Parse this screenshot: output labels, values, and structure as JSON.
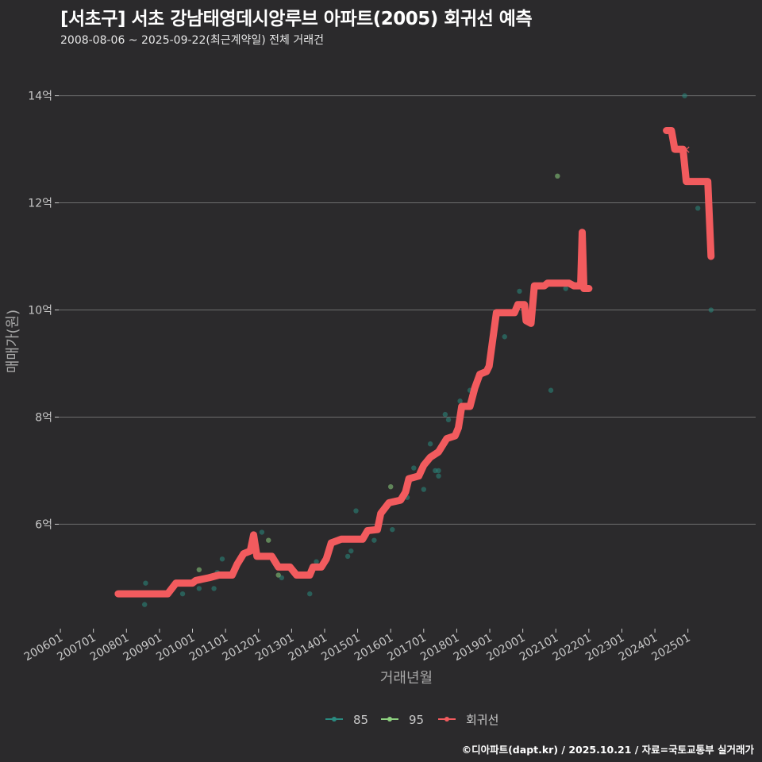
{
  "header": {
    "title": "[서초구] 서초 강남태영데시앙루브 아파트(2005) 회귀선 예측",
    "subtitle": "2008-08-06 ~ 2025-09-22(최근계약일) 전체 거래건"
  },
  "footer": {
    "credit": "©디아파트(dapt.kr) / 2025.10.21 / 자료=국토교통부 실거래가"
  },
  "colors": {
    "background": "#2b2a2c",
    "grid": "#6e6e6e",
    "s85": "#2a8a80",
    "s95": "#8dd07f",
    "regression": "#f25b5e",
    "axis_text": "#c8c8c8"
  },
  "chart_data": {
    "type": "scatter",
    "xlabel": "거래년월",
    "ylabel": "매매가(원)",
    "x_unit": "year",
    "xlim": [
      2005.95,
      2027.05
    ],
    "ylim": [
      4.05,
      14.75
    ],
    "y_unit": "억",
    "yticks": [
      6,
      8,
      10,
      12,
      14
    ],
    "ytick_labels": [
      "6억",
      "8억",
      "10억",
      "12억",
      "14억"
    ],
    "xticks": [
      2006,
      2007,
      2008,
      2009,
      2010,
      2011,
      2012,
      2013,
      2014,
      2015,
      2016,
      2017,
      2018,
      2019,
      2020,
      2021,
      2022,
      2023,
      2024,
      2025
    ],
    "xtick_labels": [
      "200601",
      "200701",
      "200801",
      "200901",
      "201001",
      "201101",
      "201201",
      "201301",
      "201401",
      "201501",
      "201601",
      "201701",
      "201801",
      "201901",
      "202001",
      "202101",
      "202201",
      "202301",
      "202401",
      "202501"
    ],
    "legend": {
      "position": "bottom",
      "items": [
        {
          "key": "s85",
          "label": "85"
        },
        {
          "key": "s95",
          "label": "95"
        },
        {
          "key": "regression",
          "label": "회귀선"
        }
      ]
    },
    "series": [
      {
        "name": "85",
        "key": "s85",
        "points": [
          [
            2008.55,
            4.5
          ],
          [
            2008.58,
            4.9
          ],
          [
            2009.7,
            4.7
          ],
          [
            2010.2,
            4.8
          ],
          [
            2010.65,
            4.8
          ],
          [
            2010.75,
            5.1
          ],
          [
            2010.9,
            5.35
          ],
          [
            2012.1,
            5.85
          ],
          [
            2012.7,
            5.0
          ],
          [
            2013.55,
            4.7
          ],
          [
            2013.75,
            5.3
          ],
          [
            2014.7,
            5.4
          ],
          [
            2014.8,
            5.5
          ],
          [
            2014.95,
            6.25
          ],
          [
            2015.5,
            5.7
          ],
          [
            2016.05,
            5.9
          ],
          [
            2016.5,
            6.5
          ],
          [
            2016.7,
            7.05
          ],
          [
            2017.0,
            6.65
          ],
          [
            2017.2,
            7.5
          ],
          [
            2017.45,
            6.9
          ],
          [
            2017.45,
            7.0
          ],
          [
            2017.35,
            7.0
          ],
          [
            2017.75,
            7.95
          ],
          [
            2017.65,
            8.05
          ],
          [
            2018.1,
            8.3
          ],
          [
            2018.4,
            8.5
          ],
          [
            2019.45,
            9.5
          ],
          [
            2019.9,
            10.35
          ],
          [
            2020.85,
            8.5
          ],
          [
            2021.3,
            10.4
          ],
          [
            2024.9,
            14.0
          ],
          [
            2025.3,
            11.9
          ],
          [
            2025.7,
            10.0
          ]
        ]
      },
      {
        "name": "95",
        "key": "s95",
        "points": [
          [
            2010.2,
            5.15
          ],
          [
            2012.3,
            5.7
          ],
          [
            2012.6,
            5.05
          ],
          [
            2016.0,
            6.7
          ],
          [
            2021.05,
            12.5
          ]
        ]
      },
      {
        "name": "회귀선",
        "key": "regression",
        "segments": [
          [
            [
              2007.75,
              4.7
            ],
            [
              2009.25,
              4.7
            ],
            [
              2009.5,
              4.9
            ],
            [
              2010.0,
              4.9
            ],
            [
              2010.1,
              4.95
            ],
            [
              2010.5,
              5.0
            ],
            [
              2010.8,
              5.05
            ],
            [
              2011.2,
              5.05
            ],
            [
              2011.35,
              5.25
            ],
            [
              2011.55,
              5.45
            ],
            [
              2011.75,
              5.5
            ],
            [
              2011.85,
              5.8
            ],
            [
              2011.95,
              5.4
            ],
            [
              2012.4,
              5.4
            ],
            [
              2012.6,
              5.2
            ],
            [
              2012.95,
              5.2
            ],
            [
              2013.15,
              5.05
            ],
            [
              2013.55,
              5.05
            ],
            [
              2013.65,
              5.2
            ],
            [
              2013.9,
              5.2
            ],
            [
              2014.05,
              5.35
            ],
            [
              2014.2,
              5.65
            ],
            [
              2014.5,
              5.72
            ],
            [
              2015.15,
              5.72
            ],
            [
              2015.3,
              5.88
            ],
            [
              2015.6,
              5.9
            ],
            [
              2015.7,
              6.2
            ],
            [
              2015.95,
              6.4
            ],
            [
              2016.3,
              6.45
            ],
            [
              2016.45,
              6.6
            ],
            [
              2016.55,
              6.85
            ],
            [
              2016.85,
              6.9
            ],
            [
              2017.0,
              7.1
            ],
            [
              2017.2,
              7.25
            ],
            [
              2017.45,
              7.35
            ],
            [
              2017.7,
              7.6
            ],
            [
              2017.95,
              7.65
            ],
            [
              2018.05,
              7.8
            ],
            [
              2018.15,
              8.2
            ],
            [
              2018.4,
              8.2
            ],
            [
              2018.55,
              8.55
            ],
            [
              2018.7,
              8.8
            ],
            [
              2018.9,
              8.85
            ],
            [
              2018.98,
              8.95
            ],
            [
              2019.2,
              9.95
            ],
            [
              2019.75,
              9.95
            ],
            [
              2019.85,
              10.1
            ],
            [
              2020.05,
              10.1
            ],
            [
              2020.1,
              9.8
            ],
            [
              2020.25,
              9.75
            ],
            [
              2020.35,
              10.45
            ],
            [
              2020.65,
              10.45
            ],
            [
              2020.75,
              10.5
            ],
            [
              2021.4,
              10.5
            ],
            [
              2021.55,
              10.45
            ],
            [
              2021.75,
              10.45
            ],
            [
              2021.8,
              11.45
            ],
            [
              2021.85,
              10.4
            ],
            [
              2022.0,
              10.4
            ]
          ],
          [
            [
              2024.35,
              13.35
            ],
            [
              2024.5,
              13.35
            ],
            [
              2024.6,
              13.0
            ],
            [
              2024.85,
              13.0
            ],
            [
              2024.95,
              12.4
            ],
            [
              2025.6,
              12.4
            ],
            [
              2025.7,
              11.0
            ]
          ]
        ]
      }
    ]
  }
}
